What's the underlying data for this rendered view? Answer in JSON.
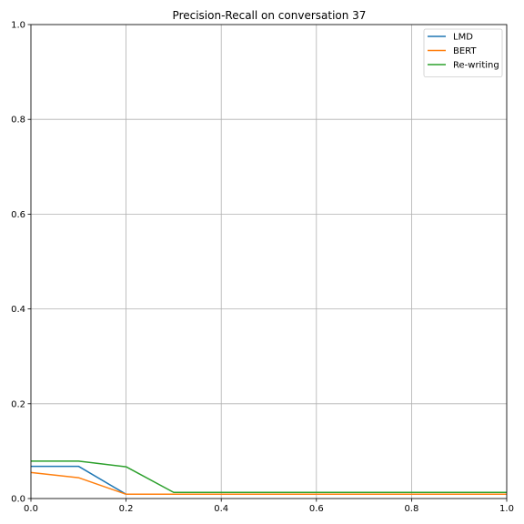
{
  "chart_data": {
    "type": "line",
    "title": "Precision-Recall on conversation 37",
    "xlabel": "",
    "ylabel": "",
    "xlim": [
      0.0,
      1.0
    ],
    "ylim": [
      0.0,
      1.0
    ],
    "grid": true,
    "legend_position": "top-right",
    "x_ticks": [
      "0.0",
      "0.2",
      "0.4",
      "0.6",
      "0.8",
      "1.0"
    ],
    "y_ticks": [
      "0.0",
      "0.2",
      "0.4",
      "0.6",
      "0.8",
      "1.0"
    ],
    "series": [
      {
        "name": "LMD",
        "color": "#1f77b4",
        "x": [
          0.0,
          0.1,
          0.2,
          0.3,
          0.4,
          0.5,
          0.6,
          0.7,
          0.8,
          0.9,
          1.0
        ],
        "y": [
          0.068,
          0.068,
          0.009,
          0.009,
          0.009,
          0.009,
          0.009,
          0.009,
          0.009,
          0.009,
          0.009
        ]
      },
      {
        "name": "BERT",
        "color": "#ff7f0e",
        "x": [
          0.0,
          0.1,
          0.2,
          0.3,
          0.4,
          0.5,
          0.6,
          0.7,
          0.8,
          0.9,
          1.0
        ],
        "y": [
          0.055,
          0.044,
          0.009,
          0.009,
          0.009,
          0.009,
          0.009,
          0.009,
          0.009,
          0.009,
          0.009
        ]
      },
      {
        "name": "Re-writing",
        "color": "#2ca02c",
        "x": [
          0.0,
          0.1,
          0.2,
          0.3,
          0.4,
          0.5,
          0.6,
          0.7,
          0.8,
          0.9,
          1.0
        ],
        "y": [
          0.079,
          0.079,
          0.067,
          0.013,
          0.013,
          0.013,
          0.013,
          0.013,
          0.013,
          0.013,
          0.013
        ]
      }
    ]
  }
}
